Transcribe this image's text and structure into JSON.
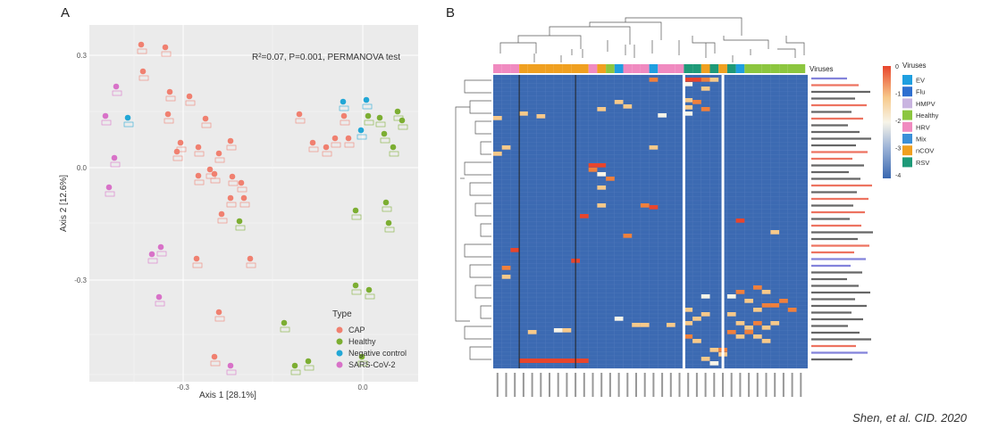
{
  "panel_a": {
    "letter": "A",
    "annotation": "R²=0.07, P=0.001, PERMANOVA test",
    "xlabel": "Axis 1  [28.1%]",
    "ylabel": "Axis 2  [12.6%]",
    "yticks": [
      "0.3",
      "0.0",
      "-0.3"
    ],
    "xticks": [
      "-0.3",
      "0.0"
    ],
    "legend_title": "Type",
    "legend": [
      {
        "label": "CAP",
        "color": "#f08070"
      },
      {
        "label": "Healthy",
        "color": "#7cae32"
      },
      {
        "label": "Negative control",
        "color": "#22a7d6"
      },
      {
        "label": "SARS-CoV-2",
        "color": "#d872c8"
      }
    ]
  },
  "panel_b": {
    "letter": "B",
    "annotation_title": "Viruses",
    "legend_title": "Viruses",
    "legend": [
      {
        "label": "EV",
        "color": "#1f9fe0"
      },
      {
        "label": "Flu",
        "color": "#2e6fd0"
      },
      {
        "label": "HMPV",
        "color": "#c9b4e0"
      },
      {
        "label": "Healthy",
        "color": "#8cc63f"
      },
      {
        "label": "HRV",
        "color": "#f08ac0"
      },
      {
        "label": "Mix",
        "color": "#3b8fd8"
      },
      {
        "label": "nCOV",
        "color": "#f0a020"
      },
      {
        "label": "RSV",
        "color": "#1e9a78"
      }
    ],
    "scale_ticks": [
      "0",
      "-1",
      "-2",
      "-3",
      "-4"
    ],
    "scale_colors": [
      "#e8452c",
      "#f7c98a",
      "#f7f4e8",
      "#9fb5d8",
      "#3a68b0"
    ]
  },
  "citation": "Shen, et al. CID. 2020"
}
